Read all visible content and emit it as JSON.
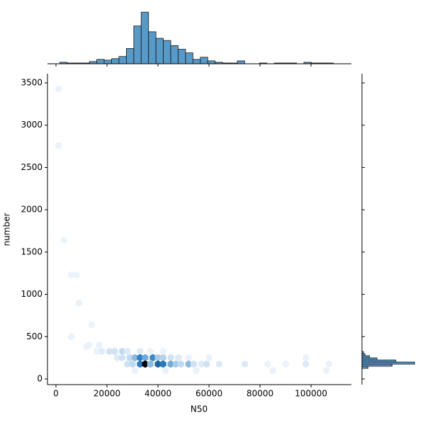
{
  "chart_data": [
    {
      "type": "hexbin",
      "xlabel": "N50",
      "ylabel": "number",
      "xlim": [
        -3333,
        115800
      ],
      "ylim": [
        -67,
        3609
      ],
      "xticks": [
        0,
        20000,
        40000,
        60000,
        80000,
        100000
      ],
      "yticks": [
        0,
        500,
        1000,
        1500,
        2000,
        2500,
        3000,
        3500
      ],
      "colors": [
        "#eaf3fb",
        "#2a7bbf",
        "#000000"
      ],
      "x": [
        1000,
        1000,
        3000,
        6000,
        8000,
        9000,
        6000,
        14000,
        12000,
        13000,
        17000,
        16000,
        18000,
        21000,
        23000,
        26000,
        28000,
        33000,
        37000,
        42000,
        24000,
        26000,
        29000,
        31000,
        33000,
        35000,
        38000,
        40000,
        42000,
        45000,
        48000,
        52000,
        60000,
        98000,
        28000,
        30000,
        33000,
        35000,
        37000,
        40000,
        42000,
        45000,
        47000,
        49000,
        52000,
        54000,
        57000,
        59000,
        64000,
        74000,
        83000,
        90000,
        98000,
        107000,
        31000,
        43000,
        55000,
        85000,
        106000
      ],
      "y": [
        3430,
        2760,
        1640,
        1230,
        1230,
        900,
        500,
        640,
        380,
        400,
        400,
        326,
        326,
        326,
        326,
        326,
        326,
        326,
        326,
        326,
        251,
        251,
        251,
        251,
        251,
        251,
        251,
        251,
        251,
        251,
        251,
        251,
        251,
        251,
        176,
        176,
        176,
        176,
        176,
        176,
        176,
        176,
        176,
        176,
        176,
        176,
        176,
        176,
        176,
        176,
        176,
        176,
        176,
        176,
        100,
        100,
        100,
        100,
        100
      ],
      "counts": [
        1,
        1,
        1,
        1,
        1,
        1,
        1,
        1,
        1,
        1,
        1,
        1,
        2,
        3,
        3,
        4,
        2,
        2,
        1,
        1,
        2,
        3,
        4,
        8,
        15,
        10,
        14,
        6,
        5,
        3,
        2,
        1,
        1,
        1,
        3,
        4,
        15,
        30,
        8,
        18,
        16,
        10,
        6,
        4,
        8,
        3,
        2,
        3,
        2,
        2,
        1,
        1,
        2,
        1,
        1,
        1,
        1,
        1,
        1
      ]
    },
    {
      "type": "histogram",
      "orientation": "vertical",
      "color": "#1f77b4",
      "ylim": [
        0,
        78
      ],
      "bins": [
        1500,
        4400,
        7300,
        10200,
        13100,
        16000,
        18900,
        21800,
        24700,
        27600,
        30500,
        33400,
        36300,
        39200,
        42100,
        45000,
        47900,
        50800,
        53700,
        56600,
        59500,
        62400,
        65300,
        68200,
        71100,
        74000,
        76900,
        79800,
        82700,
        85600,
        88500,
        91400,
        94300,
        97200,
        100100,
        103000,
        105900,
        108800
      ],
      "counts": [
        2,
        1,
        1,
        1,
        3,
        6,
        5,
        7,
        10,
        21,
        52,
        71,
        44,
        35,
        32,
        25,
        20,
        15,
        6,
        9,
        4,
        2,
        1,
        1,
        4,
        0,
        0,
        1,
        0,
        1,
        1,
        1,
        0,
        2,
        1,
        1,
        1
      ]
    },
    {
      "type": "histogram",
      "orientation": "horizontal",
      "color": "#1f77b4",
      "xlim": [
        0,
        80
      ],
      "bins": [
        125,
        150,
        175,
        200,
        225,
        250,
        275,
        300,
        325
      ],
      "counts": [
        8,
        40,
        70,
        45,
        20,
        10,
        4,
        2
      ]
    }
  ]
}
